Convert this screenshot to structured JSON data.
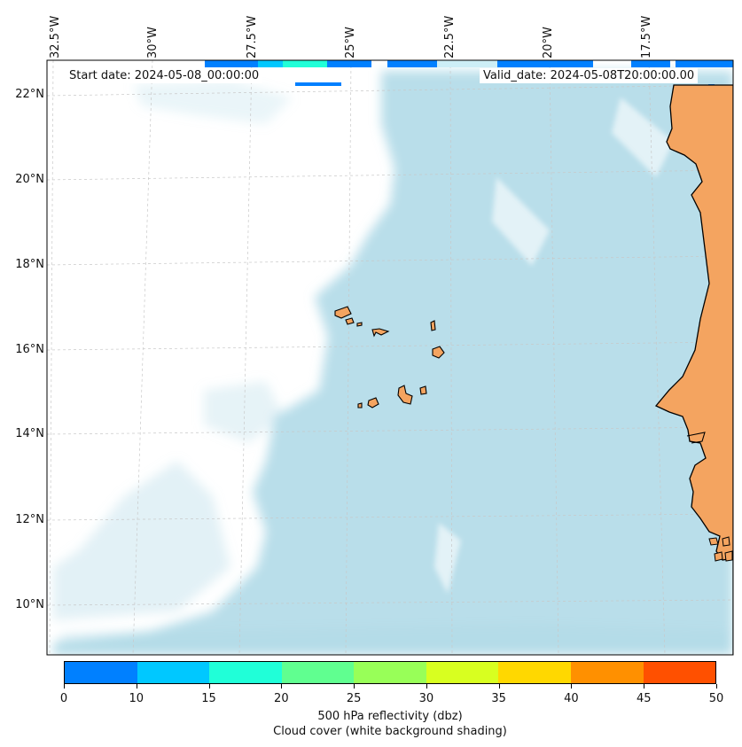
{
  "map": {
    "start_date": "Start date: 2024-05-08_00:00:00",
    "valid_date": "Valid_date: 2024-05-08T20:00:00.00",
    "lon_labels": [
      "32.5°W",
      "30°W",
      "27.5°W",
      "25°W",
      "22.5°W",
      "20°W",
      "17.5°W"
    ],
    "lat_labels": [
      "22°N",
      "20°N",
      "18°N",
      "16°N",
      "14°N",
      "12°N",
      "10°N"
    ],
    "colors": {
      "ocean_cloud": "#add8e6",
      "land": "#f4a460",
      "coastline": "#000000"
    }
  },
  "colorbar": {
    "title": "500 hPa reflectivity (dbz)",
    "subtitle": "Cloud cover (white background shading)",
    "ticks": [
      "0",
      "10",
      "15",
      "20",
      "25",
      "30",
      "35",
      "40",
      "45",
      "50"
    ],
    "colors": [
      "#0080ff",
      "#00c8ff",
      "#20ffd8",
      "#60ff90",
      "#98ff58",
      "#d8ff20",
      "#ffd800",
      "#ff9000",
      "#ff5000"
    ]
  }
}
